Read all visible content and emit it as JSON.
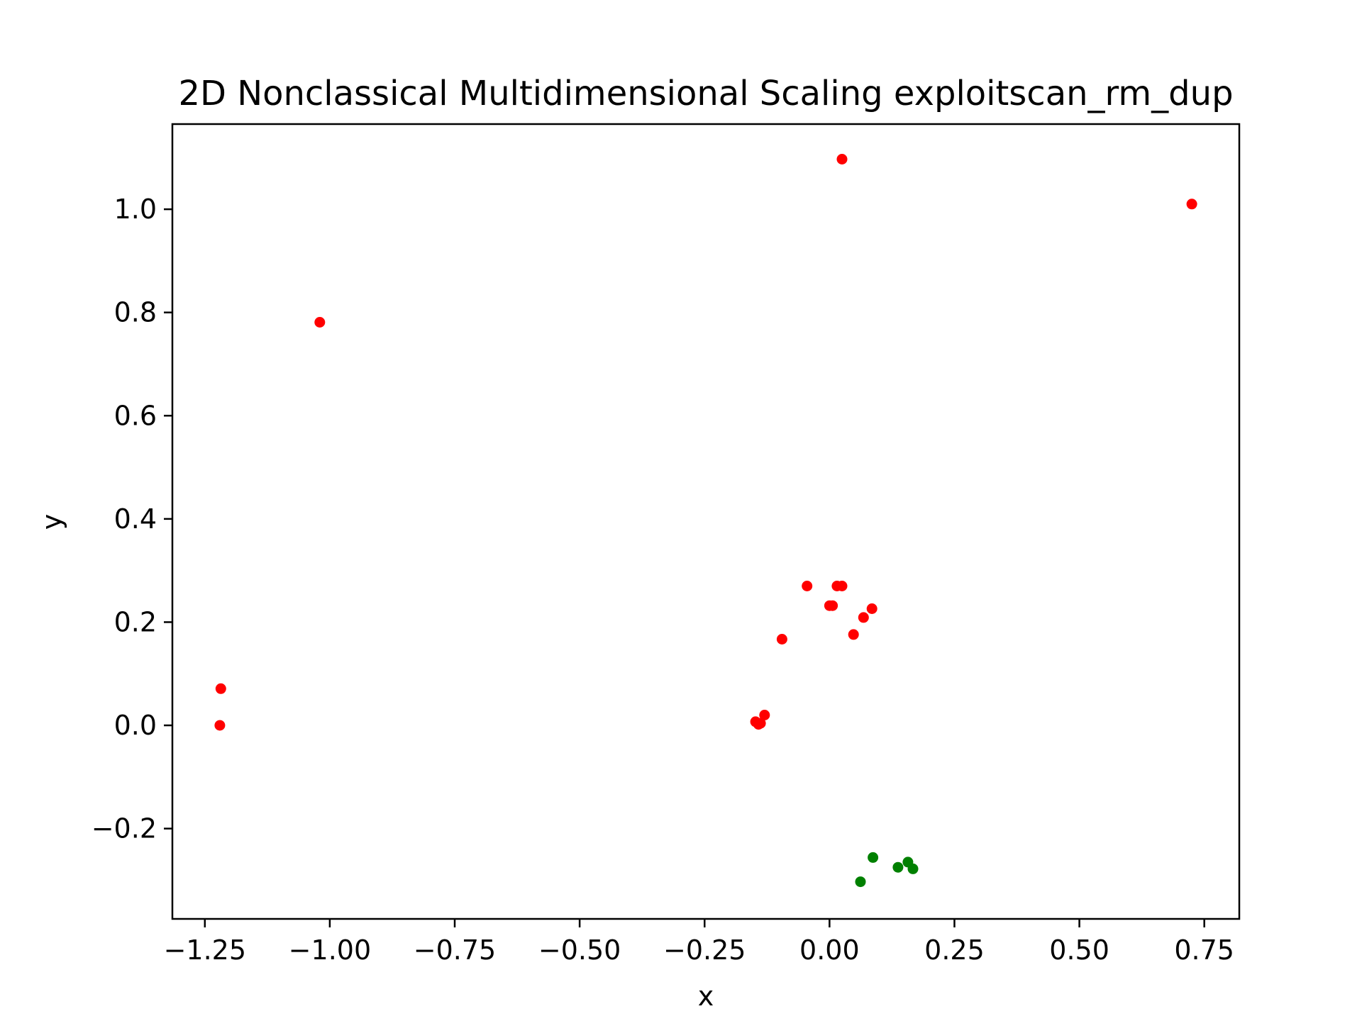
{
  "chart_data": {
    "type": "scatter",
    "title": "2D Nonclassical Multidimensional Scaling exploitscan_rm_dup",
    "xlabel": "x",
    "ylabel": "y",
    "xlim": [
      -1.315,
      0.82
    ],
    "ylim": [
      -0.375,
      1.165
    ],
    "xticks": [
      -1.25,
      -1.0,
      -0.75,
      -0.5,
      -0.25,
      0.0,
      0.25,
      0.5,
      0.75
    ],
    "xtick_labels": [
      "−1.25",
      "−1.00",
      "−0.75",
      "−0.50",
      "−0.25",
      "0.00",
      "0.25",
      "0.50",
      "0.75"
    ],
    "yticks": [
      -0.2,
      0.0,
      0.2,
      0.4,
      0.6,
      0.8,
      1.0
    ],
    "ytick_labels": [
      "−0.2",
      "0.0",
      "0.2",
      "0.4",
      "0.6",
      "0.8",
      "1.0"
    ],
    "grid": false,
    "series": [
      {
        "color": "#ff0000",
        "points": [
          [
            0.025,
            1.097
          ],
          [
            0.725,
            1.01
          ],
          [
            -1.02,
            0.781
          ],
          [
            -0.045,
            0.27
          ],
          [
            0.015,
            0.27
          ],
          [
            0.025,
            0.27
          ],
          [
            0.0,
            0.232
          ],
          [
            0.006,
            0.232
          ],
          [
            0.085,
            0.226
          ],
          [
            0.068,
            0.209
          ],
          [
            0.048,
            0.176
          ],
          [
            -0.095,
            0.167
          ],
          [
            -1.218,
            0.071
          ],
          [
            -1.22,
            0.0
          ],
          [
            -0.13,
            0.02
          ],
          [
            -0.148,
            0.007
          ],
          [
            -0.142,
            0.002
          ],
          [
            -0.138,
            0.004
          ]
        ]
      },
      {
        "color": "#008000",
        "points": [
          [
            0.087,
            -0.256
          ],
          [
            0.157,
            -0.265
          ],
          [
            0.137,
            -0.275
          ],
          [
            0.167,
            -0.278
          ],
          [
            0.062,
            -0.303
          ]
        ]
      }
    ]
  }
}
